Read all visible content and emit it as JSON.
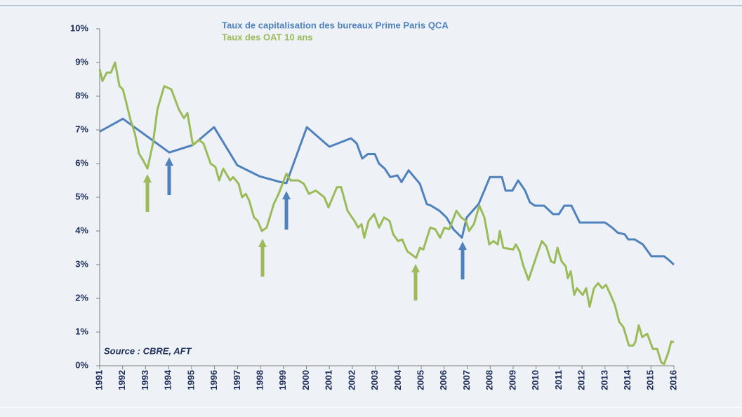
{
  "chart_data": {
    "type": "line",
    "source": "Source : CBRE, AFT",
    "xlim": [
      1991,
      2016
    ],
    "xticks": [
      1991,
      1992,
      1993,
      1994,
      1995,
      1996,
      1997,
      1998,
      1999,
      2000,
      2001,
      2002,
      2003,
      2004,
      2005,
      2006,
      2007,
      2008,
      2009,
      2010,
      2011,
      2012,
      2013,
      2014,
      2015,
      2016
    ],
    "ylim": [
      0,
      10
    ],
    "yticks": [
      {
        "value": 0,
        "label": "0%"
      },
      {
        "value": 1,
        "label": "1%"
      },
      {
        "value": 2,
        "label": "2%"
      },
      {
        "value": 3,
        "label": "3%"
      },
      {
        "value": 4,
        "label": "4%"
      },
      {
        "value": 5,
        "label": "5%"
      },
      {
        "value": 6,
        "label": "6%"
      },
      {
        "value": 7,
        "label": "7%"
      },
      {
        "value": 8,
        "label": "8%"
      },
      {
        "value": 9,
        "label": "9%"
      },
      {
        "value": 10,
        "label": "10%"
      }
    ],
    "series": [
      {
        "name": "Taux de capitalisation des bureaux Prime Paris QCA",
        "color": "#4f81bd",
        "x": [
          1991,
          1992.01,
          1994.03,
          1995.06,
          1995.98,
          1996.99,
          1997.97,
          1998.88,
          1999.13,
          2000.02,
          2001.0,
          2001.94,
          2002.19,
          2002.43,
          2002.67,
          2002.98,
          2003.16,
          2003.41,
          2003.65,
          2003.96,
          2004.14,
          2004.45,
          2004.94,
          2005.24,
          2005.43,
          2005.79,
          2006.1,
          2006.4,
          2006.77,
          2006.98,
          2007.5,
          2007.99,
          2008.51,
          2008.67,
          2008.97,
          2009.22,
          2009.52,
          2009.73,
          2009.95,
          2010.35,
          2010.74,
          2010.99,
          2011.23,
          2011.54,
          2011.9,
          2013.0,
          2013.31,
          2013.55,
          2013.86,
          2014.01,
          2014.29,
          2014.65,
          2015.02,
          2015.57,
          2015.76,
          2016.0
        ],
        "values": [
          6.95,
          7.33,
          6.33,
          6.55,
          7.08,
          5.95,
          5.62,
          5.45,
          5.42,
          7.08,
          6.5,
          6.75,
          6.6,
          6.15,
          6.28,
          6.28,
          6.0,
          5.85,
          5.6,
          5.65,
          5.45,
          5.8,
          5.4,
          4.8,
          4.75,
          4.6,
          4.4,
          4.05,
          3.8,
          4.4,
          4.8,
          5.6,
          5.6,
          5.2,
          5.2,
          5.5,
          5.2,
          4.85,
          4.75,
          4.75,
          4.5,
          4.5,
          4.75,
          4.75,
          4.25,
          4.25,
          4.1,
          3.95,
          3.9,
          3.75,
          3.75,
          3.6,
          3.25,
          3.25,
          3.15,
          3.0
        ]
      },
      {
        "name": "Taux des OAT 10 ans",
        "color": "#9bbb59",
        "x": [
          1991.0,
          1991.12,
          1991.31,
          1991.49,
          1991.67,
          1991.86,
          1992.01,
          1992.16,
          1992.34,
          1992.53,
          1992.71,
          1992.89,
          1993.08,
          1993.32,
          1993.51,
          1993.81,
          1994.12,
          1994.45,
          1994.67,
          1994.82,
          1995.06,
          1995.31,
          1995.52,
          1995.83,
          1996.04,
          1996.2,
          1996.38,
          1996.68,
          1996.81,
          1997.05,
          1997.2,
          1997.36,
          1997.51,
          1997.72,
          1997.88,
          1998.06,
          1998.27,
          1998.58,
          1998.79,
          1999.13,
          1999.31,
          1999.65,
          1999.89,
          2000.11,
          2000.41,
          2000.78,
          2000.96,
          2001.33,
          2001.51,
          2001.79,
          2002.09,
          2002.25,
          2002.4,
          2002.52,
          2002.71,
          2002.95,
          2003.16,
          2003.38,
          2003.62,
          2003.78,
          2003.99,
          2004.17,
          2004.39,
          2004.78,
          2004.94,
          2005.09,
          2005.39,
          2005.61,
          2005.82,
          2006.01,
          2006.22,
          2006.53,
          2006.74,
          2006.95,
          2007.08,
          2007.29,
          2007.53,
          2007.75,
          2007.96,
          2008.15,
          2008.33,
          2008.42,
          2008.57,
          2009.0,
          2009.12,
          2009.28,
          2009.43,
          2009.67,
          2010.04,
          2010.25,
          2010.44,
          2010.65,
          2010.8,
          2010.93,
          2011.11,
          2011.29,
          2011.38,
          2011.51,
          2011.66,
          2011.78,
          2012.03,
          2012.18,
          2012.33,
          2012.52,
          2012.7,
          2012.88,
          2013.04,
          2013.25,
          2013.43,
          2013.62,
          2013.8,
          2014.04,
          2014.23,
          2014.32,
          2014.47,
          2014.62,
          2014.84,
          2015.08,
          2015.27,
          2015.45,
          2015.57,
          2015.76,
          2015.88,
          2016.0
        ],
        "values": [
          8.8,
          8.45,
          8.7,
          8.7,
          9.0,
          8.3,
          8.2,
          7.8,
          7.3,
          6.9,
          6.3,
          6.1,
          5.85,
          6.6,
          7.6,
          8.3,
          8.2,
          7.6,
          7.35,
          7.5,
          6.55,
          6.7,
          6.6,
          6.0,
          5.9,
          5.5,
          5.85,
          5.5,
          5.6,
          5.4,
          5.0,
          5.1,
          4.9,
          4.4,
          4.3,
          4.0,
          4.1,
          4.8,
          5.1,
          5.7,
          5.5,
          5.5,
          5.4,
          5.1,
          5.2,
          5.0,
          4.7,
          5.3,
          5.3,
          4.6,
          4.3,
          4.1,
          4.2,
          3.8,
          4.3,
          4.5,
          4.1,
          4.4,
          4.3,
          3.9,
          3.7,
          3.75,
          3.4,
          3.2,
          3.5,
          3.45,
          4.1,
          4.05,
          3.8,
          4.1,
          4.05,
          4.6,
          4.4,
          4.3,
          4.0,
          4.2,
          4.75,
          4.4,
          3.6,
          3.7,
          3.6,
          4.0,
          3.5,
          3.45,
          3.6,
          3.4,
          3.0,
          2.55,
          3.3,
          3.7,
          3.55,
          3.1,
          3.05,
          3.5,
          3.1,
          2.95,
          2.6,
          2.8,
          2.1,
          2.3,
          2.1,
          2.3,
          1.75,
          2.3,
          2.45,
          2.3,
          2.4,
          2.1,
          1.8,
          1.3,
          1.15,
          0.6,
          0.6,
          0.7,
          1.2,
          0.85,
          0.95,
          0.5,
          0.5,
          0.1,
          0.05,
          0.4,
          0.72,
          0.7
        ]
      }
    ]
  }
}
